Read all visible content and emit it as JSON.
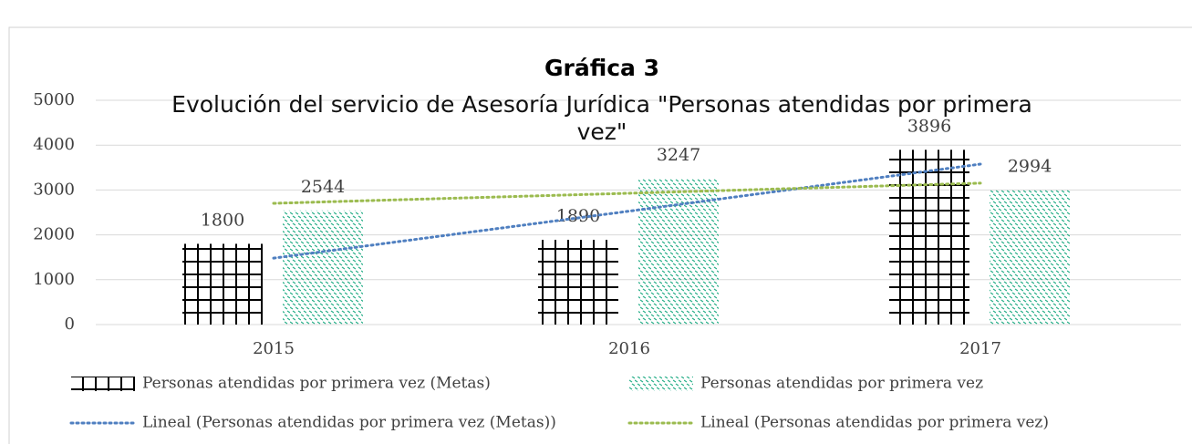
{
  "chart_data": {
    "type": "bar",
    "title": "Gráfica 3",
    "subtitle": "Evolución del servicio de Asesoría Jurídica \"Personas atendidas por primera vez\"",
    "categories": [
      "2015",
      "2016",
      "2017"
    ],
    "series": [
      {
        "name": "Personas atendidas por primera vez (Metas)",
        "color": "#000000",
        "values": [
          1800,
          1890,
          3896
        ]
      },
      {
        "name": "Personas atendidas por primera vez",
        "color": "#2bb08a",
        "values": [
          2544,
          3247,
          2994
        ]
      }
    ],
    "trendlines": [
      {
        "name": "Lineal (Personas atendidas por primera vez (Metas))",
        "color": "#4f7fc0",
        "values": [
          1481,
          2529,
          3577
        ]
      },
      {
        "name": "Lineal (Personas atendidas por primera vez)",
        "color": "#9bbb4f",
        "values": [
          2703,
          2928,
          3153
        ]
      }
    ],
    "ylim": [
      0,
      5000
    ],
    "yticks": [
      0,
      1000,
      2000,
      3000,
      4000,
      5000
    ],
    "grid": true
  }
}
